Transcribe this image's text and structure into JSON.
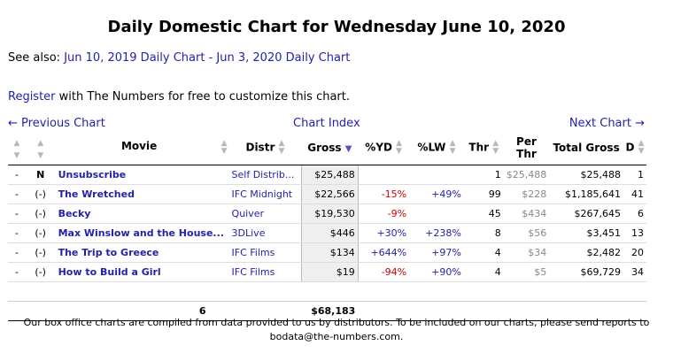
{
  "title": "Daily Domestic Chart for Wednesday June 10, 2020",
  "see_also": {
    "prefix": "See also:",
    "link1": "Jun 10, 2019 Daily Chart",
    "separator": "-",
    "link2": "Jun 3, 2020 Daily Chart"
  },
  "register": {
    "link": "Register",
    "text": "with The Numbers for free to customize this chart."
  },
  "nav": {
    "prev": "← Previous Chart",
    "index": "Chart Index",
    "next": "Next Chart →"
  },
  "columns": {
    "movie": "Movie",
    "distr": "Distr",
    "gross": "Gross",
    "yd": "%YD",
    "lw": "%LW",
    "thr": "Thr",
    "per_thr": "Per Thr",
    "total_gross": "Total Gross",
    "d": "D"
  },
  "rows": [
    {
      "dash": "-",
      "rank": "N",
      "movie": "Unsubscribe",
      "distr": "Self Distrib...",
      "gross": "$25,488",
      "yd": "",
      "lw": "",
      "thr": "1",
      "per_thr": "$25,488",
      "total": "$25,488",
      "days": "1"
    },
    {
      "dash": "-",
      "rank": "(-)",
      "movie": "The Wretched",
      "distr": "IFC Midnight",
      "gross": "$22,566",
      "yd": "-15%",
      "lw": "+49%",
      "thr": "99",
      "per_thr": "$228",
      "total": "$1,185,641",
      "days": "41"
    },
    {
      "dash": "-",
      "rank": "(-)",
      "movie": "Becky",
      "distr": "Quiver",
      "gross": "$19,530",
      "yd": "-9%",
      "lw": "",
      "thr": "45",
      "per_thr": "$434",
      "total": "$267,645",
      "days": "6"
    },
    {
      "dash": "-",
      "rank": "(-)",
      "movie": "Max Winslow and the House...",
      "distr": "3DLive",
      "gross": "$446",
      "yd": "+30%",
      "lw": "+238%",
      "thr": "8",
      "per_thr": "$56",
      "total": "$3,451",
      "days": "13"
    },
    {
      "dash": "-",
      "rank": "(-)",
      "movie": "The Trip to Greece",
      "distr": "IFC Films",
      "gross": "$134",
      "yd": "+644%",
      "lw": "+97%",
      "thr": "4",
      "per_thr": "$34",
      "total": "$2,482",
      "days": "20"
    },
    {
      "dash": "-",
      "rank": "(-)",
      "movie": "How to Build a Girl",
      "distr": "IFC Films",
      "gross": "$19",
      "yd": "-94%",
      "lw": "+90%",
      "thr": "4",
      "per_thr": "$5",
      "total": "$69,729",
      "days": "34"
    }
  ],
  "totals": {
    "count": "6",
    "gross": "$68,183"
  },
  "footer": "Our box office charts are compiled from data provided to us by distributors. To be included on our charts, please send reports to bodata@the-numbers.com.",
  "colors": {
    "link": "#2222aa",
    "negative": "#d00000",
    "gross_bg": "#efefef"
  }
}
